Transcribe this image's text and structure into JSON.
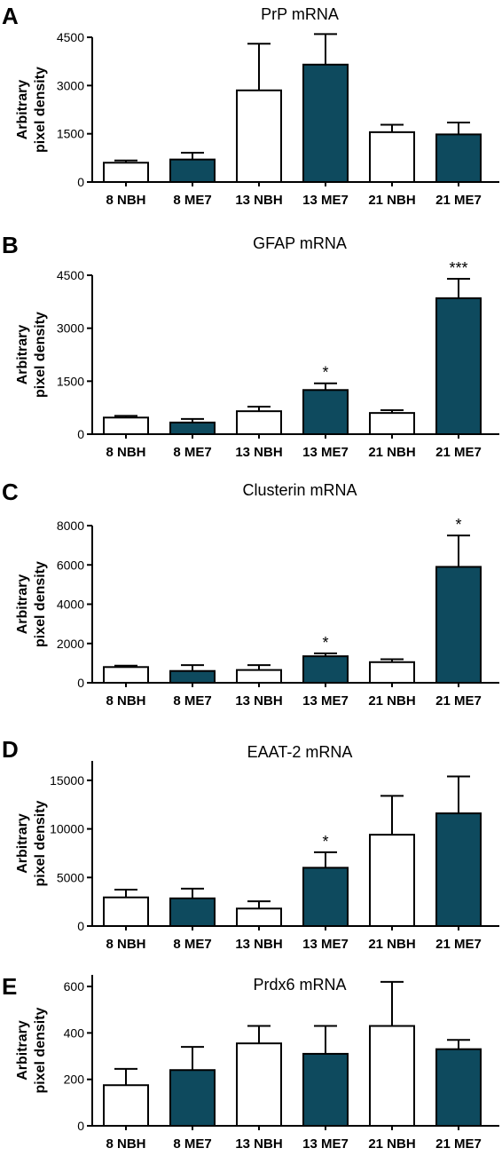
{
  "bar_colors": {
    "NBH": "#ffffff",
    "ME7": "#0e4a5e"
  },
  "chart_data": [
    {
      "type": "bar",
      "panel_label": "A",
      "title": "PrP mRNA",
      "ylabel_lines": [
        "Arbitrary",
        "pixel density"
      ],
      "categories": [
        "8 NBH",
        "8 ME7",
        "13 NBH",
        "13 ME7",
        "21 NBH",
        "21 ME7"
      ],
      "groups": [
        "NBH",
        "ME7",
        "NBH",
        "ME7",
        "NBH",
        "ME7"
      ],
      "values": [
        600,
        700,
        2850,
        3650,
        1550,
        1480
      ],
      "errors": [
        70,
        210,
        1450,
        950,
        230,
        370
      ],
      "significance": [
        "",
        "",
        "",
        "",
        "",
        ""
      ],
      "ylim": [
        0,
        4500
      ],
      "yticks": [
        0,
        1500,
        3000,
        4500
      ],
      "ytick_labels": [
        "0",
        "1500",
        "3000",
        "4500"
      ]
    },
    {
      "type": "bar",
      "panel_label": "B",
      "title": "GFAP mRNA",
      "ylabel_lines": [
        "Arbitrary",
        "pixel density"
      ],
      "categories": [
        "8 NBH",
        "8 ME7",
        "13 NBH",
        "13 ME7",
        "21 NBH",
        "21 ME7"
      ],
      "groups": [
        "NBH",
        "ME7",
        "NBH",
        "ME7",
        "NBH",
        "ME7"
      ],
      "values": [
        470,
        330,
        650,
        1250,
        600,
        3850
      ],
      "errors": [
        50,
        100,
        130,
        190,
        80,
        550
      ],
      "significance": [
        "",
        "",
        "",
        "*",
        "",
        "***"
      ],
      "ylim": [
        0,
        4500
      ],
      "yticks": [
        0,
        1500,
        3000,
        4500
      ],
      "ytick_labels": [
        "0",
        "1500",
        "3000",
        "4500"
      ]
    },
    {
      "type": "bar",
      "panel_label": "C",
      "title": "Clusterin mRNA",
      "ylabel_lines": [
        "Arbitrary",
        "pixel density"
      ],
      "categories": [
        "8 NBH",
        "8 ME7",
        "13 NBH",
        "13 ME7",
        "21 NBH",
        "21 ME7"
      ],
      "groups": [
        "NBH",
        "ME7",
        "NBH",
        "ME7",
        "NBH",
        "ME7"
      ],
      "values": [
        800,
        600,
        650,
        1350,
        1050,
        5900
      ],
      "errors": [
        70,
        300,
        250,
        150,
        150,
        1600
      ],
      "significance": [
        "",
        "",
        "",
        "*",
        "",
        "*"
      ],
      "ylim": [
        0,
        8000
      ],
      "yticks": [
        0,
        2000,
        4000,
        6000,
        8000
      ],
      "ytick_labels": [
        "0",
        "2000",
        "4000",
        "6000",
        "8000"
      ]
    },
    {
      "type": "bar",
      "panel_label": "D",
      "title": "EAAT-2 mRNA",
      "ylabel_lines": [
        "Arbitrary",
        "pixel density"
      ],
      "categories": [
        "8 NBH",
        "8 ME7",
        "13 NBH",
        "13 ME7",
        "21 NBH",
        "21 ME7"
      ],
      "groups": [
        "NBH",
        "ME7",
        "NBH",
        "ME7",
        "NBH",
        "ME7"
      ],
      "values": [
        2950,
        2850,
        1800,
        6000,
        9400,
        11600
      ],
      "errors": [
        800,
        1000,
        750,
        1600,
        4000,
        3800
      ],
      "significance": [
        "",
        "",
        "",
        "*",
        "",
        ""
      ],
      "ylim": [
        0,
        17000
      ],
      "yticks": [
        0,
        5000,
        10000,
        15000
      ],
      "ytick_labels": [
        "0",
        "5000",
        "10000",
        "15000"
      ]
    },
    {
      "type": "bar",
      "panel_label": "E",
      "title": "Prdx6 mRNA",
      "ylabel_lines": [
        "Arbitrary",
        "pixel density"
      ],
      "categories": [
        "8 NBH",
        "8 ME7",
        "13 NBH",
        "13 ME7",
        "21 NBH",
        "21 ME7"
      ],
      "groups": [
        "NBH",
        "ME7",
        "NBH",
        "ME7",
        "NBH",
        "ME7"
      ],
      "values": [
        175,
        240,
        355,
        310,
        430,
        330
      ],
      "errors": [
        70,
        100,
        75,
        120,
        190,
        40
      ],
      "significance": [
        "",
        "",
        "",
        "",
        "",
        ""
      ],
      "ylim": [
        0,
        650
      ],
      "yticks": [
        0,
        200,
        400,
        600
      ],
      "ytick_labels": [
        "0",
        "200",
        "400",
        "600"
      ]
    }
  ]
}
